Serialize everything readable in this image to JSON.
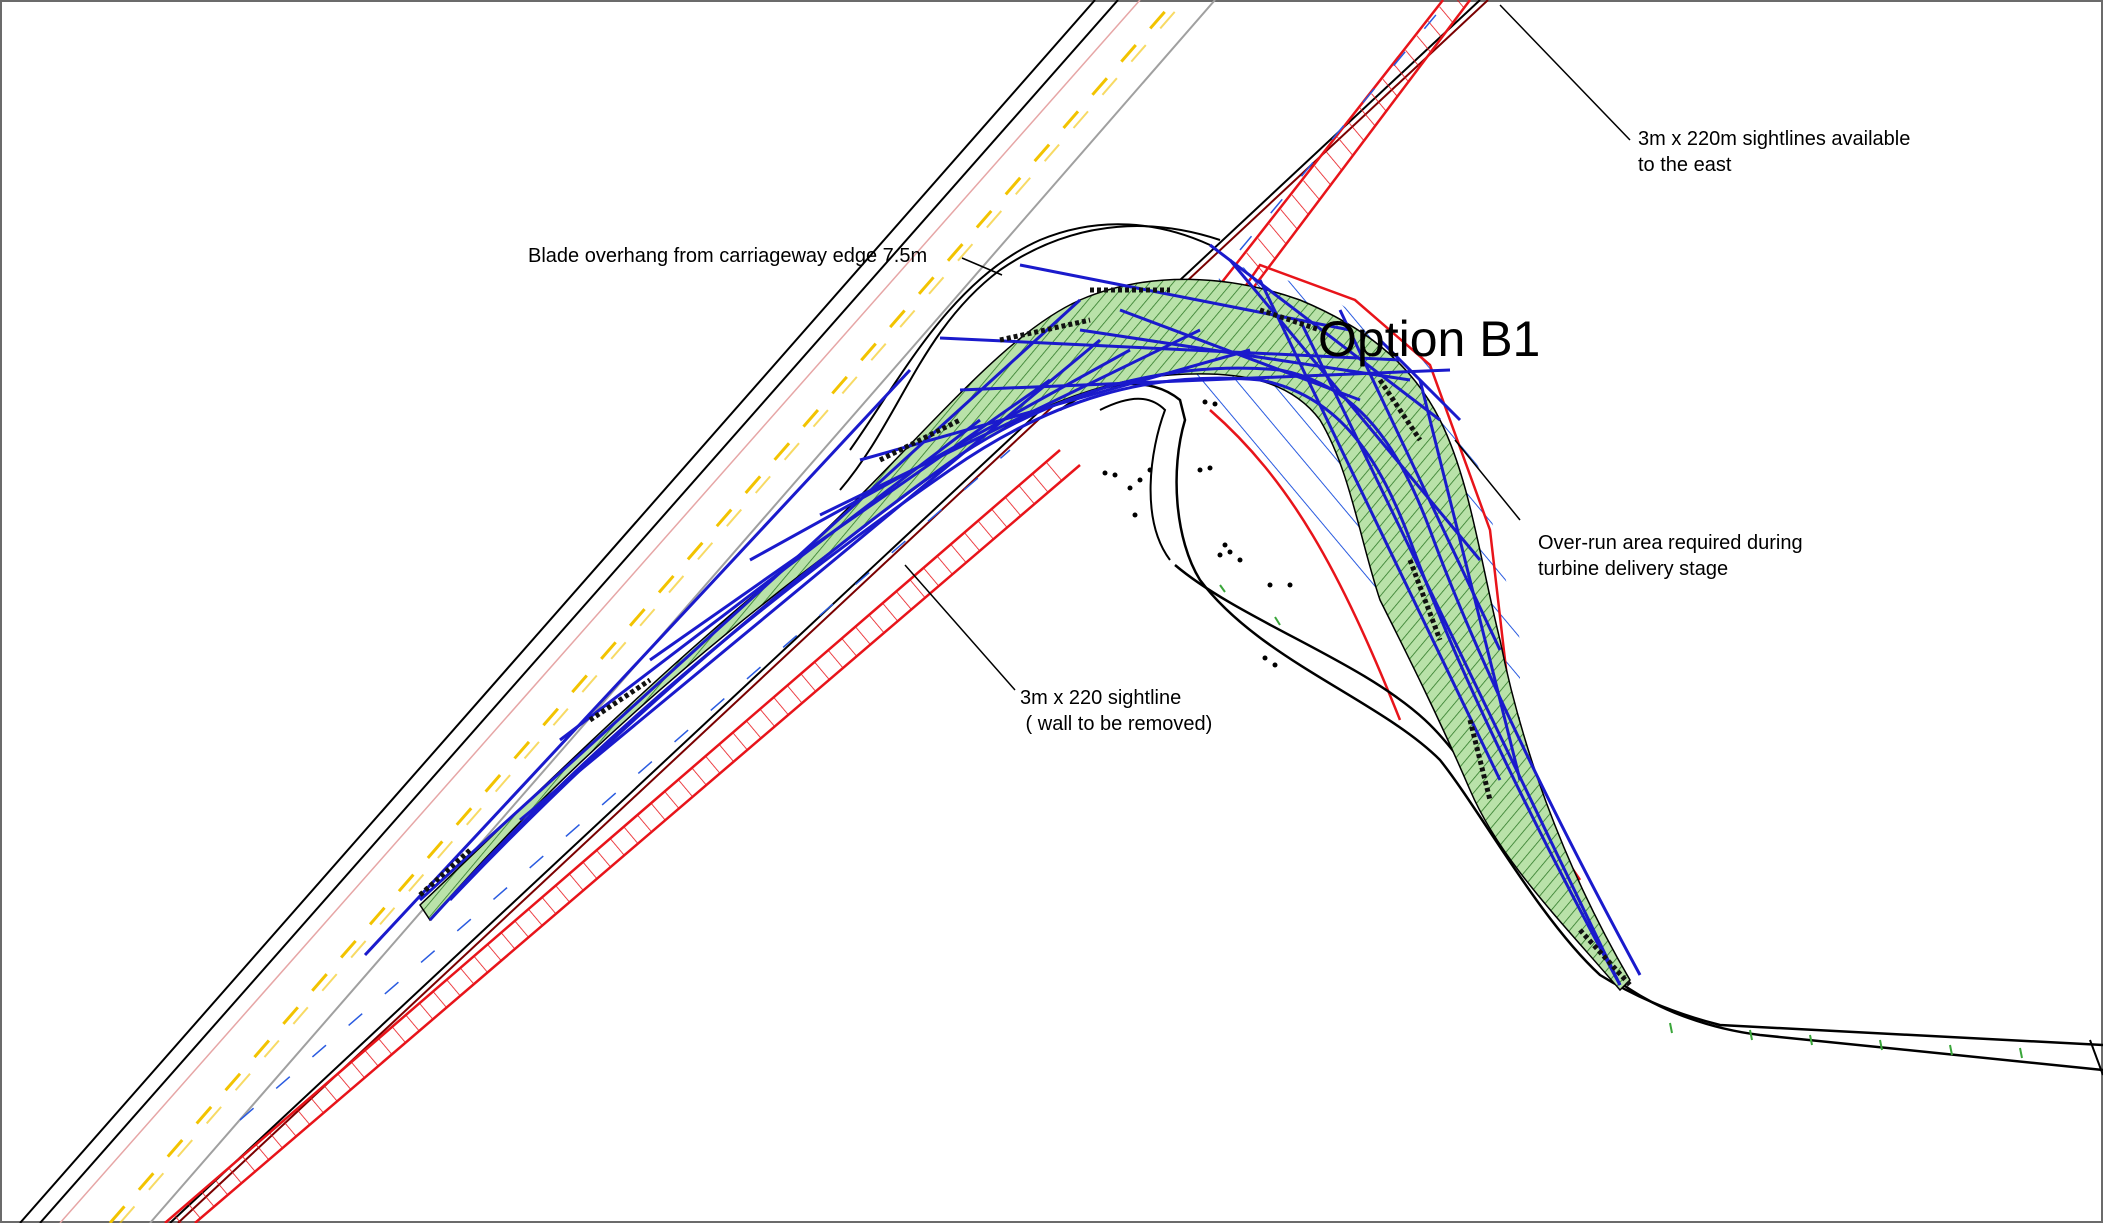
{
  "annotations": {
    "sightline_east": {
      "line1": "3m x 220m sightlines available",
      "line2": "to the east"
    },
    "blade_overhang": {
      "line1": "Blade overhang from carriageway edge 7.5m"
    },
    "overrun_area": {
      "line1": "Over-run area required during",
      "line2": "turbine delivery stage"
    },
    "sightline_west": {
      "line1": "3m x 220 sightline",
      "line2": " ( wall to be removed)"
    },
    "option_label": "Option B1"
  },
  "colors": {
    "road_edge": "#000000",
    "sightline": "#e8141a",
    "centre_line": "#f2c300",
    "swept_path": "#1a1acc",
    "overrun_fill": "#8fcf7a",
    "hatch_blue": "#2a5be0",
    "verge_tick": "#3aa63a",
    "wall": "#7a0000"
  },
  "icons": {
    "north_road": "road-main",
    "junction": "road-junction"
  }
}
